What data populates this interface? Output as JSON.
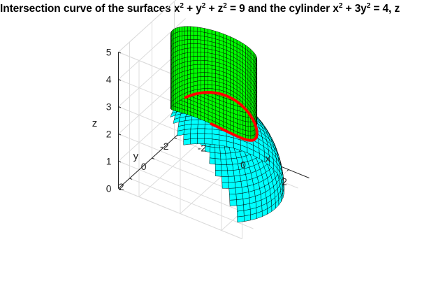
{
  "title": {
    "p1": "Intersection curve of the surfaces x",
    "s1": "2",
    "p2": " + y",
    "s2": "2",
    "p3": " + z",
    "s3": "2",
    "p4": " = 9 and the cylinder x",
    "s4": "2",
    "p5": " + 3y",
    "s5": "2",
    "p6": " = 4, z"
  },
  "chart_data": {
    "type": "surface3d",
    "xlabel": "x",
    "ylabel": "y",
    "zlabel": "z",
    "xlim": [
      -3,
      3
    ],
    "ylim": [
      -3,
      3
    ],
    "zlim": [
      0,
      5
    ],
    "xticks": [
      "-2",
      "0",
      "2"
    ],
    "yticks": [
      "-2",
      "0",
      "2"
    ],
    "zticks": [
      "0",
      "1",
      "2",
      "3",
      "4",
      "5"
    ],
    "grid": true,
    "box": true,
    "surfaces": [
      {
        "kind": "upper-hemisphere",
        "equation": "x^2 + y^2 + z^2 = 9, z >= 0",
        "radius": 3,
        "color": "#00FFFF",
        "edge_color": "#000000"
      },
      {
        "kind": "elliptic-cylinder",
        "equation": "x^2 + 3y^2 = 4",
        "z_range": [
          2.2,
          5
        ],
        "color": "#00FF00",
        "edge_color": "#000000"
      }
    ],
    "curves": [
      {
        "kind": "intersection-curve",
        "x_of_t": "2cos(t)",
        "y_of_t": "(2/sqrt(3))sin(t)",
        "z_of_t": "sqrt(9 - x^2 - y^2)",
        "color": "#FF0000"
      }
    ]
  }
}
